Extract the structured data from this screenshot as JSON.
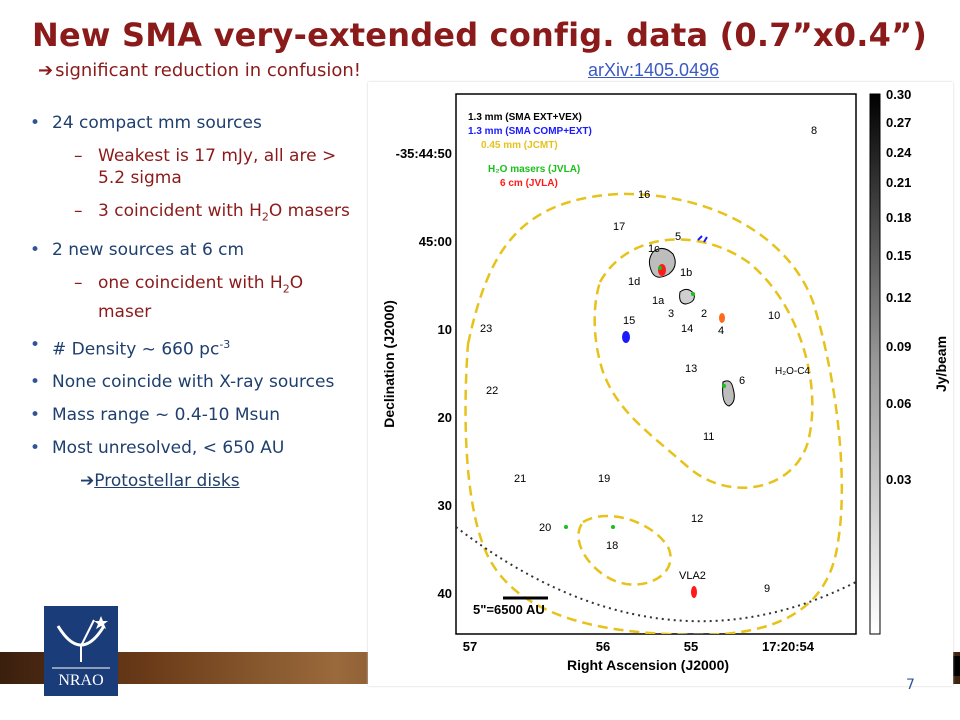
{
  "slide": {
    "title": "New SMA very-extended config. data (0.7”x0.4”)",
    "subtitle_arrow": "➔",
    "subtitle": "significant reduction in confusion!",
    "link": "arXiv:1405.0496",
    "page_number": "7"
  },
  "bullets": [
    {
      "level": 1,
      "text": "24 compact mm sources"
    },
    {
      "level": 2,
      "text": "Weakest is 17 mJy, all are > 5.2 sigma"
    },
    {
      "level": 2,
      "text_parts": [
        "3 coincident with H",
        "2",
        "O masers"
      ]
    },
    {
      "level": 1,
      "text": "2 new sources at 6 cm"
    },
    {
      "level": 2,
      "text_parts": [
        "one coincident with H",
        "2",
        "O maser"
      ]
    },
    {
      "level": 1,
      "text_parts": [
        "# Density ~ 660 pc",
        "-3"
      ]
    },
    {
      "level": 1,
      "text": "None coincide with X-ray sources"
    },
    {
      "level": 1,
      "text": "Mass range ~ 0.4-10  Msun"
    },
    {
      "level": 1,
      "text": "Most unresolved,  < 650 AU"
    },
    {
      "level": 3,
      "arrow": "➔",
      "text": "Protostellar disks"
    }
  ],
  "figure": {
    "legend": [
      {
        "text": "1.3 mm (SMA EXT+VEX)",
        "color": "#000000"
      },
      {
        "text": "1.3 mm (SMA COMP+EXT)",
        "color": "#1a1aff"
      },
      {
        "text": "0.45 mm (JCMT)",
        "color": "#e6c21a"
      },
      {
        "text": "H₂O masers (JVLA)",
        "color": "#19c019"
      },
      {
        "text": "6 cm (JVLA)",
        "color": "#ff1a1a"
      }
    ],
    "dec_ticks": [
      "-35:44:50",
      "45:00",
      "10",
      "20",
      "30",
      "40"
    ],
    "ra_ticks": [
      "57",
      "56",
      "55",
      "17:20:54"
    ],
    "xlabel": "Right Ascension (J2000)",
    "ylabel": "Declination (J2000)",
    "scalebar": "5\"=6500 AU",
    "colorbar_ticks": [
      "0.30",
      "0.27",
      "0.24",
      "0.21",
      "0.18",
      "0.15",
      "0.12",
      "0.09",
      "0.06",
      "0.03"
    ],
    "colorbar_label": "Jy/beam",
    "source_labels": [
      "8",
      "16",
      "17",
      "5",
      "1c",
      "1b",
      "1d",
      "1a",
      "3",
      "2",
      "14",
      "4",
      "10",
      "15",
      "23",
      "13",
      "6",
      "H₂O-C4",
      "22",
      "11",
      "21",
      "19",
      "12",
      "20",
      "18",
      "VLA2",
      "9"
    ]
  },
  "logo": {
    "text": "NRAO"
  }
}
